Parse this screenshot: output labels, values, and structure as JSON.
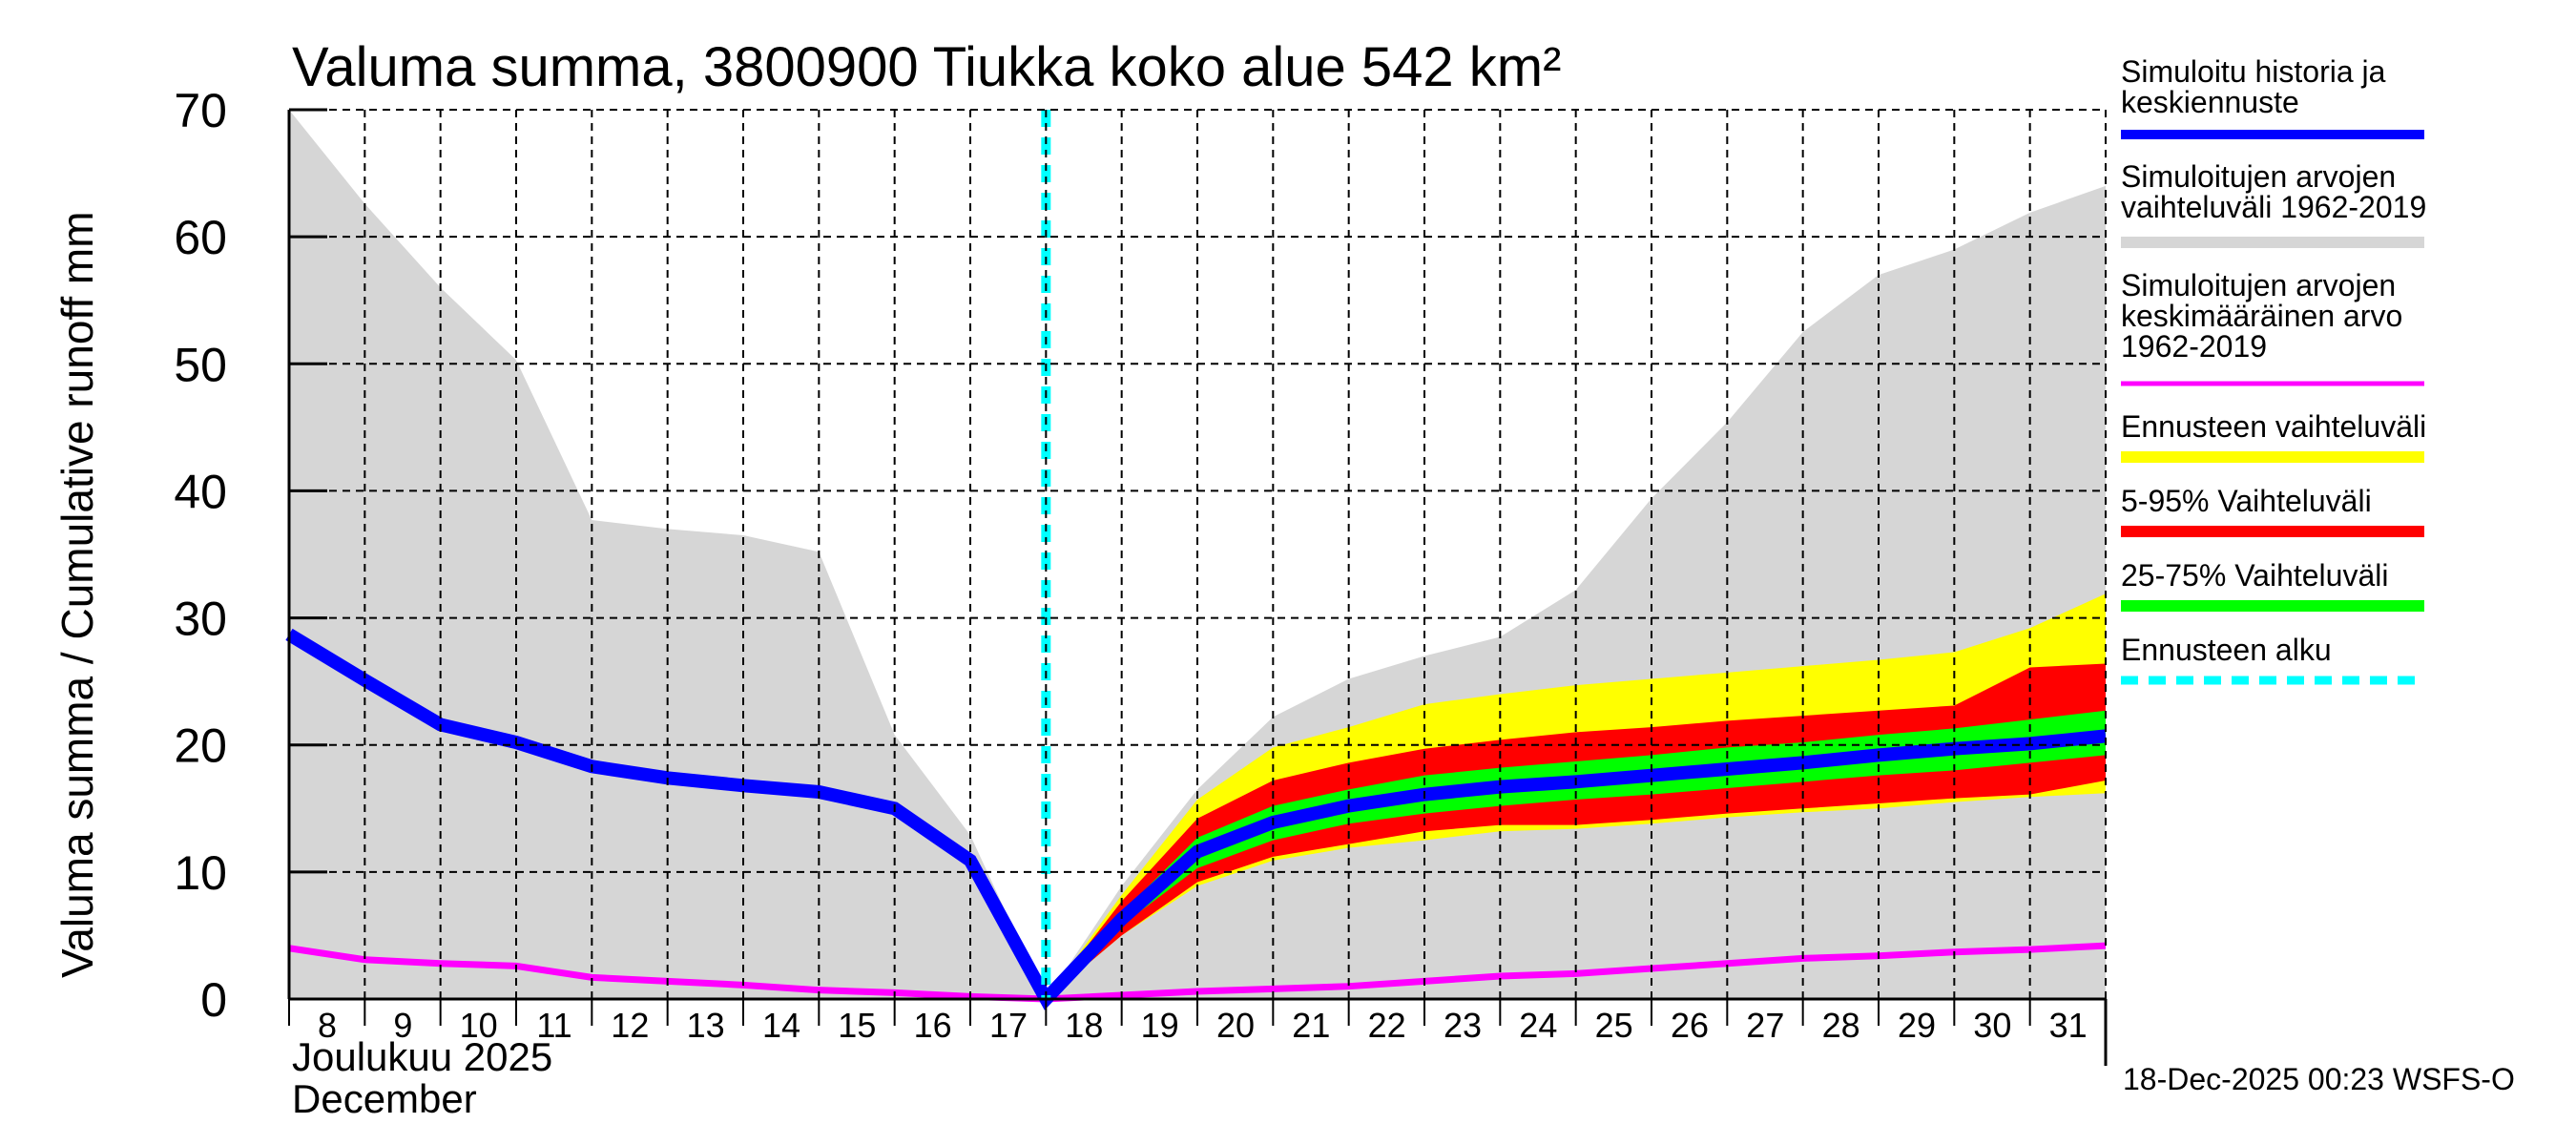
{
  "chart_data": {
    "type": "area",
    "title": "Valuma summa, 3800900 Tiukka koko alue 542 km²",
    "ylabel": "Valuma summa / Cumulative runoff    mm",
    "xlabel_line1": "Joulukuu  2025",
    "xlabel_line2": "December",
    "ylim": [
      0,
      70
    ],
    "yticks": [
      0,
      10,
      20,
      30,
      40,
      50,
      60,
      70
    ],
    "ytick_labels": [
      "0",
      "10",
      "20",
      "30",
      "40",
      "50",
      "60",
      "70"
    ],
    "xlim_days": [
      8,
      32
    ],
    "xtick_days": [
      8,
      9,
      10,
      11,
      12,
      13,
      14,
      15,
      16,
      17,
      18,
      19,
      20,
      21,
      22,
      23,
      24,
      25,
      26,
      27,
      28,
      29,
      30,
      31
    ],
    "xtick_labels": [
      "8",
      "9",
      "10",
      "11",
      "12",
      "13",
      "14",
      "15",
      "16",
      "17",
      "18",
      "19",
      "20",
      "21",
      "22",
      "23",
      "24",
      "25",
      "26",
      "27",
      "28",
      "29",
      "30",
      "31"
    ],
    "grid": true,
    "forecast_start_day": 18,
    "footer": "18-Dec-2025 00:23 WSFS-O",
    "series": [
      {
        "name": "Simuloitujen arvojen vaihteluväli 1962-2019",
        "kind": "band",
        "color": "#d6d6d6",
        "x": [
          8,
          9,
          10,
          11,
          12,
          13,
          14,
          15,
          16,
          17,
          18,
          19,
          20,
          21,
          22,
          23,
          24,
          25,
          26,
          27,
          28,
          29,
          30,
          31,
          32
        ],
        "upper": [
          70,
          62.6,
          56.0,
          50.3,
          37.7,
          37.0,
          36.5,
          35.2,
          20.8,
          12.9,
          0,
          8.9,
          16.5,
          22.2,
          25.2,
          27.0,
          28.5,
          32.2,
          39.4,
          45.4,
          52.5,
          57.0,
          59.0,
          61.9,
          64.0
        ],
        "lower": [
          0,
          0,
          0,
          0,
          0,
          0,
          0,
          0,
          0,
          0,
          0,
          0,
          0,
          0,
          0,
          0,
          0,
          0,
          0,
          0,
          0,
          0,
          0,
          0,
          0
        ]
      },
      {
        "name": "Ennusteen vaihteluväli",
        "kind": "band",
        "color": "#ffff00",
        "x": [
          18,
          19,
          20,
          21,
          22,
          23,
          24,
          25,
          26,
          27,
          28,
          29,
          30,
          31,
          32
        ],
        "upper": [
          0,
          8.2,
          15.7,
          19.8,
          21.4,
          23.2,
          24.0,
          24.7,
          25.2,
          25.7,
          26.2,
          26.7,
          27.3,
          29.2,
          31.9
        ],
        "lower": [
          0,
          5.0,
          8.9,
          10.9,
          11.9,
          12.5,
          13.2,
          13.4,
          13.8,
          14.3,
          14.7,
          15.0,
          15.5,
          15.9,
          16.2
        ]
      },
      {
        "name": "5-95% Vaihteluväli",
        "kind": "band",
        "color": "#ff0000",
        "x": [
          18,
          19,
          20,
          21,
          22,
          23,
          24,
          25,
          26,
          27,
          28,
          29,
          30,
          31,
          32
        ],
        "upper": [
          0,
          7.7,
          14.2,
          17.2,
          18.6,
          19.7,
          20.4,
          21.0,
          21.4,
          21.9,
          22.3,
          22.7,
          23.1,
          26.1,
          26.4
        ],
        "lower": [
          0,
          5.0,
          9.2,
          11.2,
          12.2,
          13.2,
          13.7,
          13.7,
          14.1,
          14.6,
          15.0,
          15.4,
          15.8,
          16.1,
          17.2
        ]
      },
      {
        "name": "25-75% Vaihteluväli",
        "kind": "band",
        "color": "#00ff00",
        "x": [
          18,
          19,
          20,
          21,
          22,
          23,
          24,
          25,
          26,
          27,
          28,
          29,
          30,
          31,
          32
        ],
        "upper": [
          0,
          6.8,
          12.7,
          15.2,
          16.5,
          17.6,
          18.2,
          18.7,
          19.2,
          19.8,
          20.2,
          20.8,
          21.3,
          22.0,
          22.7
        ],
        "lower": [
          0,
          5.8,
          10.3,
          12.5,
          13.8,
          14.6,
          15.2,
          15.7,
          16.1,
          16.6,
          17.1,
          17.6,
          18.0,
          18.6,
          19.2
        ]
      },
      {
        "name": "Simuloitujen arvojen keskimääräinen arvo 1962-2019",
        "kind": "line",
        "color": "#ff00ff",
        "x": [
          8,
          9,
          10,
          11,
          12,
          13,
          14,
          15,
          16,
          17,
          18,
          19,
          20,
          21,
          22,
          23,
          24,
          25,
          26,
          27,
          28,
          29,
          30,
          31,
          32
        ],
        "values": [
          4.0,
          3.1,
          2.8,
          2.6,
          1.7,
          1.4,
          1.1,
          0.7,
          0.5,
          0.2,
          0,
          0.3,
          0.6,
          0.8,
          1.0,
          1.4,
          1.8,
          2.0,
          2.4,
          2.8,
          3.2,
          3.4,
          3.7,
          3.9,
          4.2
        ]
      },
      {
        "name": "Simuloitu historia ja keskiennuste",
        "kind": "line",
        "color": "#0000ff",
        "x": [
          8,
          9,
          10,
          11,
          12,
          13,
          14,
          15,
          16,
          17,
          18,
          19,
          20,
          21,
          22,
          23,
          24,
          25,
          26,
          27,
          28,
          29,
          30,
          31,
          32
        ],
        "values": [
          28.7,
          25.1,
          21.6,
          20.2,
          18.3,
          17.4,
          16.8,
          16.3,
          15.0,
          10.9,
          0,
          6.3,
          11.6,
          13.9,
          15.2,
          16.1,
          16.7,
          17.1,
          17.6,
          18.1,
          18.6,
          19.2,
          19.7,
          20.1,
          20.7
        ]
      }
    ],
    "legend": [
      {
        "label_lines": [
          "Simuloitu historia ja",
          "keskiennuste"
        ],
        "color": "#0000ff",
        "style": "line"
      },
      {
        "label_lines": [
          "Simuloitujen arvojen",
          "vaihteluväli 1962-2019"
        ],
        "color": "#d6d6d6",
        "style": "band"
      },
      {
        "label_lines": [
          "Simuloitujen arvojen",
          "keskimääräinen arvo",
          "   1962-2019"
        ],
        "color": "#ff00ff",
        "style": "line"
      },
      {
        "label_lines": [
          "Ennusteen vaihteluväli"
        ],
        "color": "#ffff00",
        "style": "band"
      },
      {
        "label_lines": [
          "5-95% Vaihteluväli"
        ],
        "color": "#ff0000",
        "style": "band"
      },
      {
        "label_lines": [
          "25-75% Vaihteluväli"
        ],
        "color": "#00ff00",
        "style": "band"
      },
      {
        "label_lines": [
          "Ennusteen alku"
        ],
        "color": "#00ffff",
        "style": "dashed"
      }
    ],
    "legend_position": "right"
  }
}
